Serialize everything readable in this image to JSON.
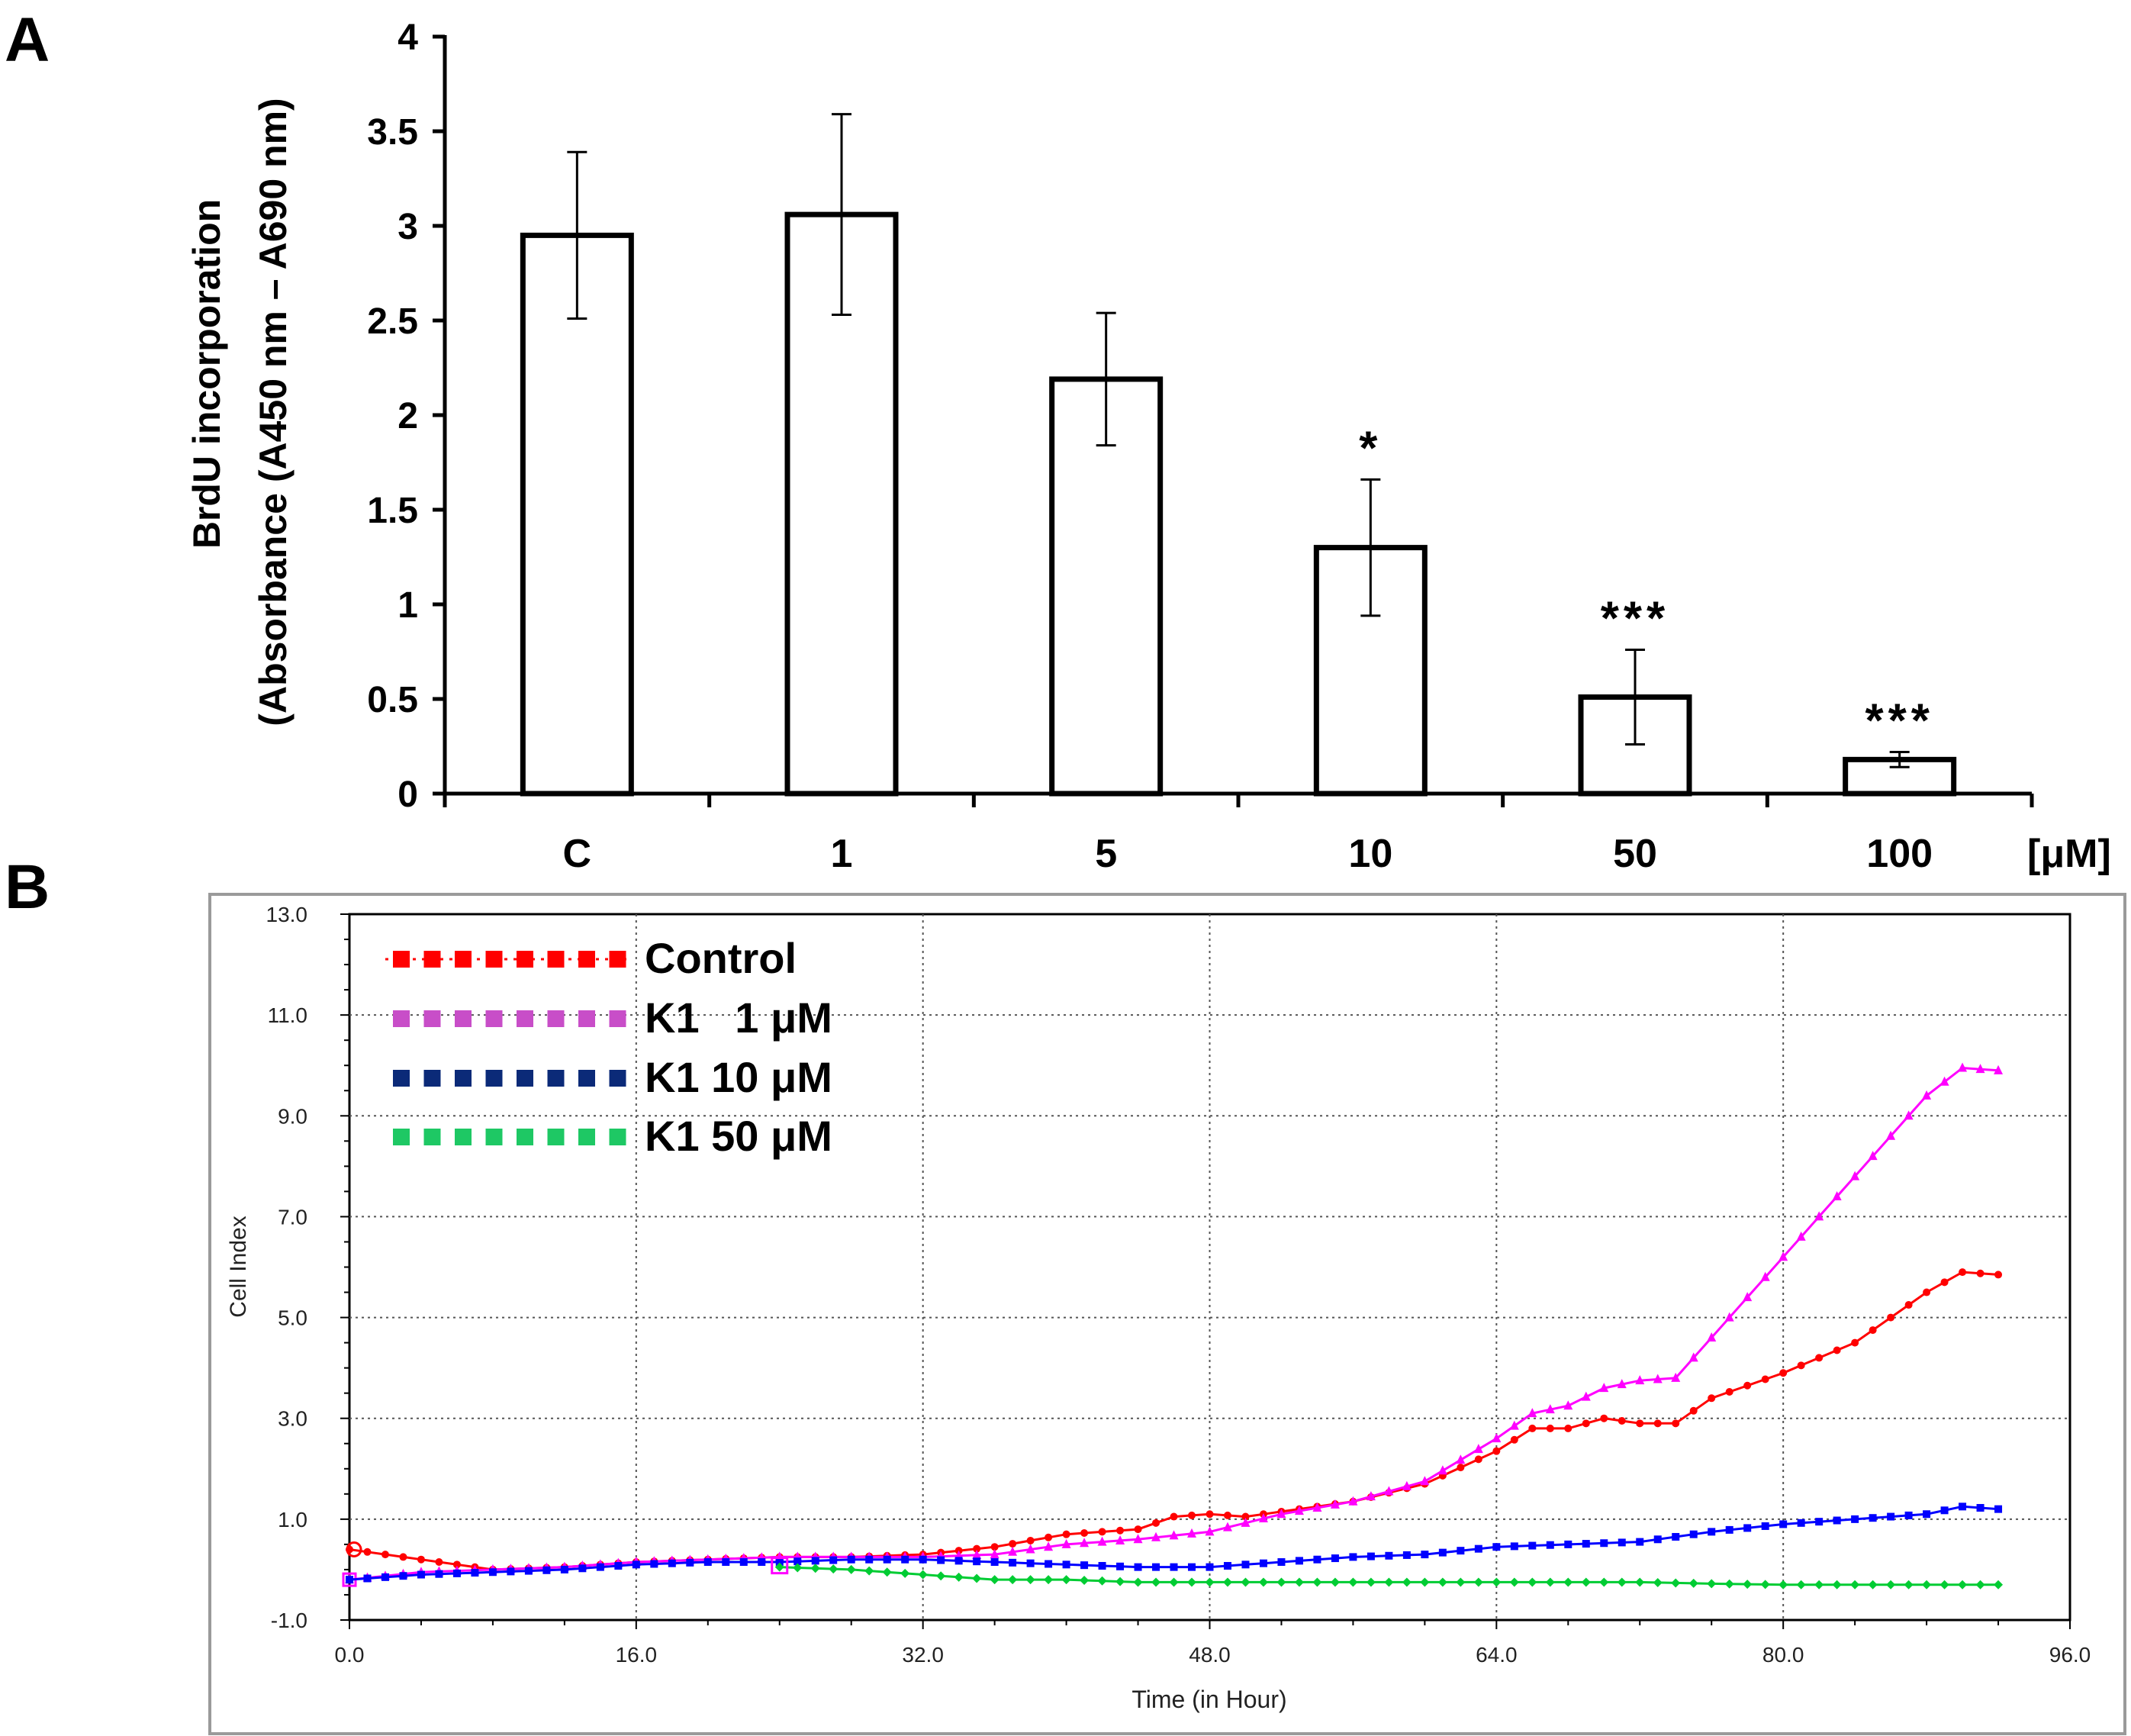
{
  "panels": {
    "a": "A",
    "b": "B"
  },
  "chart_data": [
    {
      "type": "bar",
      "ylabel_line1": "BrdU incorporation",
      "ylabel_line2": "(Absorbance (A450 nm – A690 nm)",
      "xunit": "[μM]",
      "categories": [
        "C",
        "1",
        "5",
        "10",
        "50",
        "100"
      ],
      "values": [
        2.95,
        3.06,
        2.19,
        1.3,
        0.51,
        0.18
      ],
      "errors": [
        0.44,
        0.53,
        0.35,
        0.36,
        0.25,
        0.04
      ],
      "significance": [
        "",
        "",
        "",
        "*",
        "***",
        "***"
      ],
      "ylim": [
        0,
        4
      ],
      "yticks": [
        "0",
        "0.5",
        "1",
        "1.5",
        "2",
        "2.5",
        "3",
        "3.5",
        "4"
      ],
      "grid": false
    },
    {
      "type": "line",
      "xlabel": "Time (in Hour)",
      "ylabel": "Cell Index",
      "xlim": [
        0,
        96
      ],
      "ylim": [
        -1,
        13
      ],
      "xticks": [
        "0.0",
        "16.0",
        "32.0",
        "48.0",
        "64.0",
        "80.0",
        "96.0"
      ],
      "yticks": [
        "-1.0",
        "1.0",
        "3.0",
        "5.0",
        "7.0",
        "9.0",
        "11.0",
        "13.0"
      ],
      "grid": true,
      "legend_position": "top-left",
      "series": [
        {
          "name": "Control",
          "color": "#ff0000",
          "x": [
            0,
            4,
            8,
            12,
            16,
            20,
            24,
            28,
            32,
            36,
            40,
            44,
            46,
            48,
            50,
            52,
            56,
            60,
            64,
            66,
            68,
            70,
            72,
            74,
            76,
            80,
            84,
            88,
            90,
            92
          ],
          "y": [
            0.4,
            0.2,
            0.0,
            0.05,
            0.15,
            0.2,
            0.25,
            0.25,
            0.3,
            0.45,
            0.7,
            0.8,
            1.05,
            1.1,
            1.05,
            1.15,
            1.35,
            1.7,
            2.35,
            2.8,
            2.8,
            3.0,
            2.9,
            2.9,
            3.4,
            3.9,
            4.5,
            5.5,
            5.9,
            5.85
          ]
        },
        {
          "name": "K1   1 μM",
          "color": "#ff00ff",
          "x": [
            0,
            4,
            8,
            12,
            16,
            20,
            24,
            28,
            32,
            36,
            40,
            44,
            48,
            52,
            56,
            60,
            64,
            66,
            68,
            70,
            72,
            74,
            76,
            80,
            84,
            88,
            90,
            92
          ],
          "y": [
            -0.2,
            -0.05,
            0.0,
            0.05,
            0.15,
            0.2,
            0.25,
            0.25,
            0.25,
            0.3,
            0.5,
            0.6,
            0.75,
            1.1,
            1.35,
            1.75,
            2.6,
            3.1,
            3.25,
            3.6,
            3.75,
            3.8,
            4.6,
            6.2,
            7.8,
            9.4,
            9.95,
            9.9
          ]
        },
        {
          "name": "K1 10 μM",
          "color": "#0000ff",
          "x": [
            0,
            4,
            8,
            12,
            16,
            20,
            24,
            28,
            32,
            36,
            40,
            44,
            48,
            52,
            56,
            60,
            64,
            68,
            72,
            76,
            80,
            84,
            88,
            90,
            92
          ],
          "y": [
            -0.2,
            -0.1,
            -0.05,
            0.0,
            0.1,
            0.15,
            0.15,
            0.2,
            0.2,
            0.15,
            0.1,
            0.05,
            0.05,
            0.15,
            0.25,
            0.3,
            0.45,
            0.5,
            0.55,
            0.75,
            0.9,
            1.0,
            1.1,
            1.25,
            1.2
          ]
        },
        {
          "name": "K1 50 μM",
          "color": "#00cc33",
          "x": [
            24,
            28,
            32,
            36,
            40,
            44,
            48,
            52,
            56,
            60,
            64,
            68,
            72,
            76,
            80,
            84,
            88,
            92
          ],
          "y": [
            0.05,
            0.0,
            -0.1,
            -0.2,
            -0.2,
            -0.25,
            -0.25,
            -0.25,
            -0.25,
            -0.25,
            -0.25,
            -0.25,
            -0.25,
            -0.28,
            -0.3,
            -0.3,
            -0.3,
            -0.3
          ]
        }
      ]
    }
  ]
}
